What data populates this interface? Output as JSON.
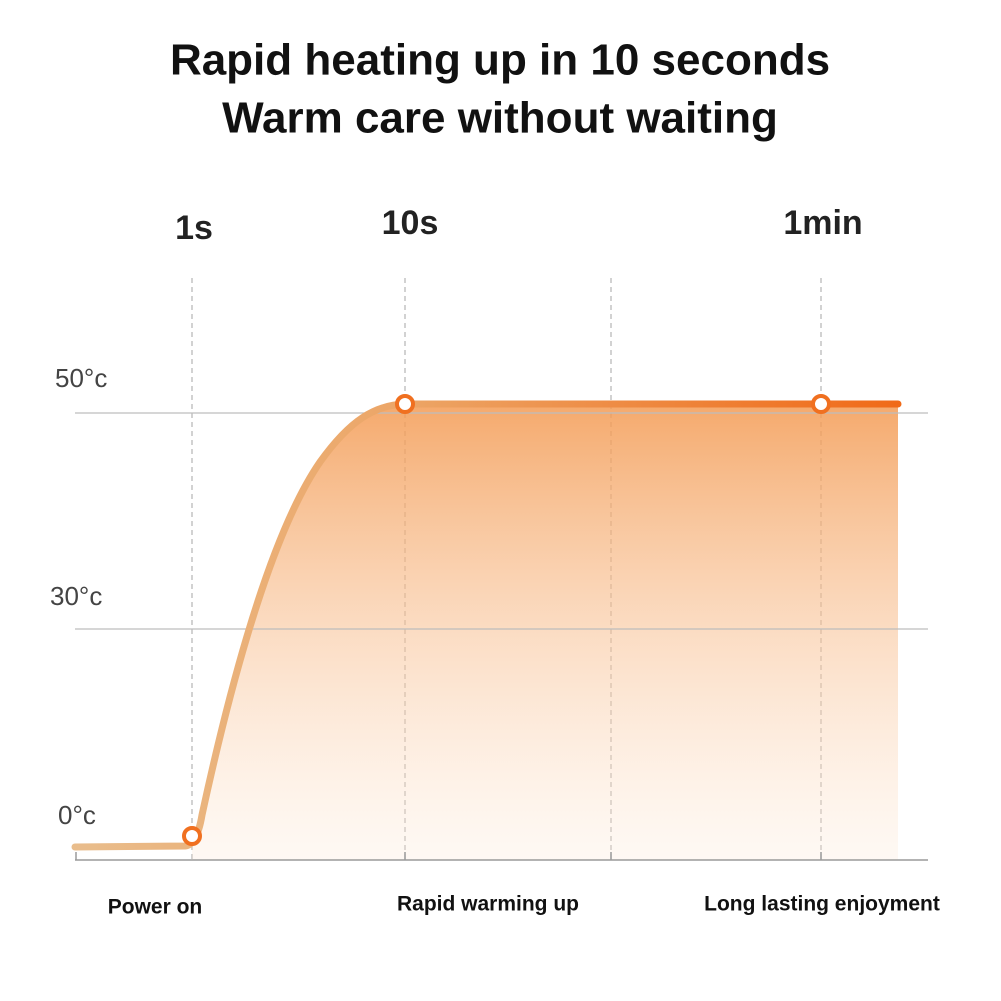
{
  "header": {
    "title_lines": [
      "Rapid heating up in 10 seconds",
      "Warm care without waiting"
    ]
  },
  "diagram": {
    "time_labels": [
      "1s",
      "10s",
      "1min"
    ],
    "temperature_labels": [
      "50°c",
      "30°c",
      "0°c"
    ],
    "stage_labels": [
      "Power on",
      "Rapid warming up",
      "Long lasting enjoyment"
    ]
  }
}
